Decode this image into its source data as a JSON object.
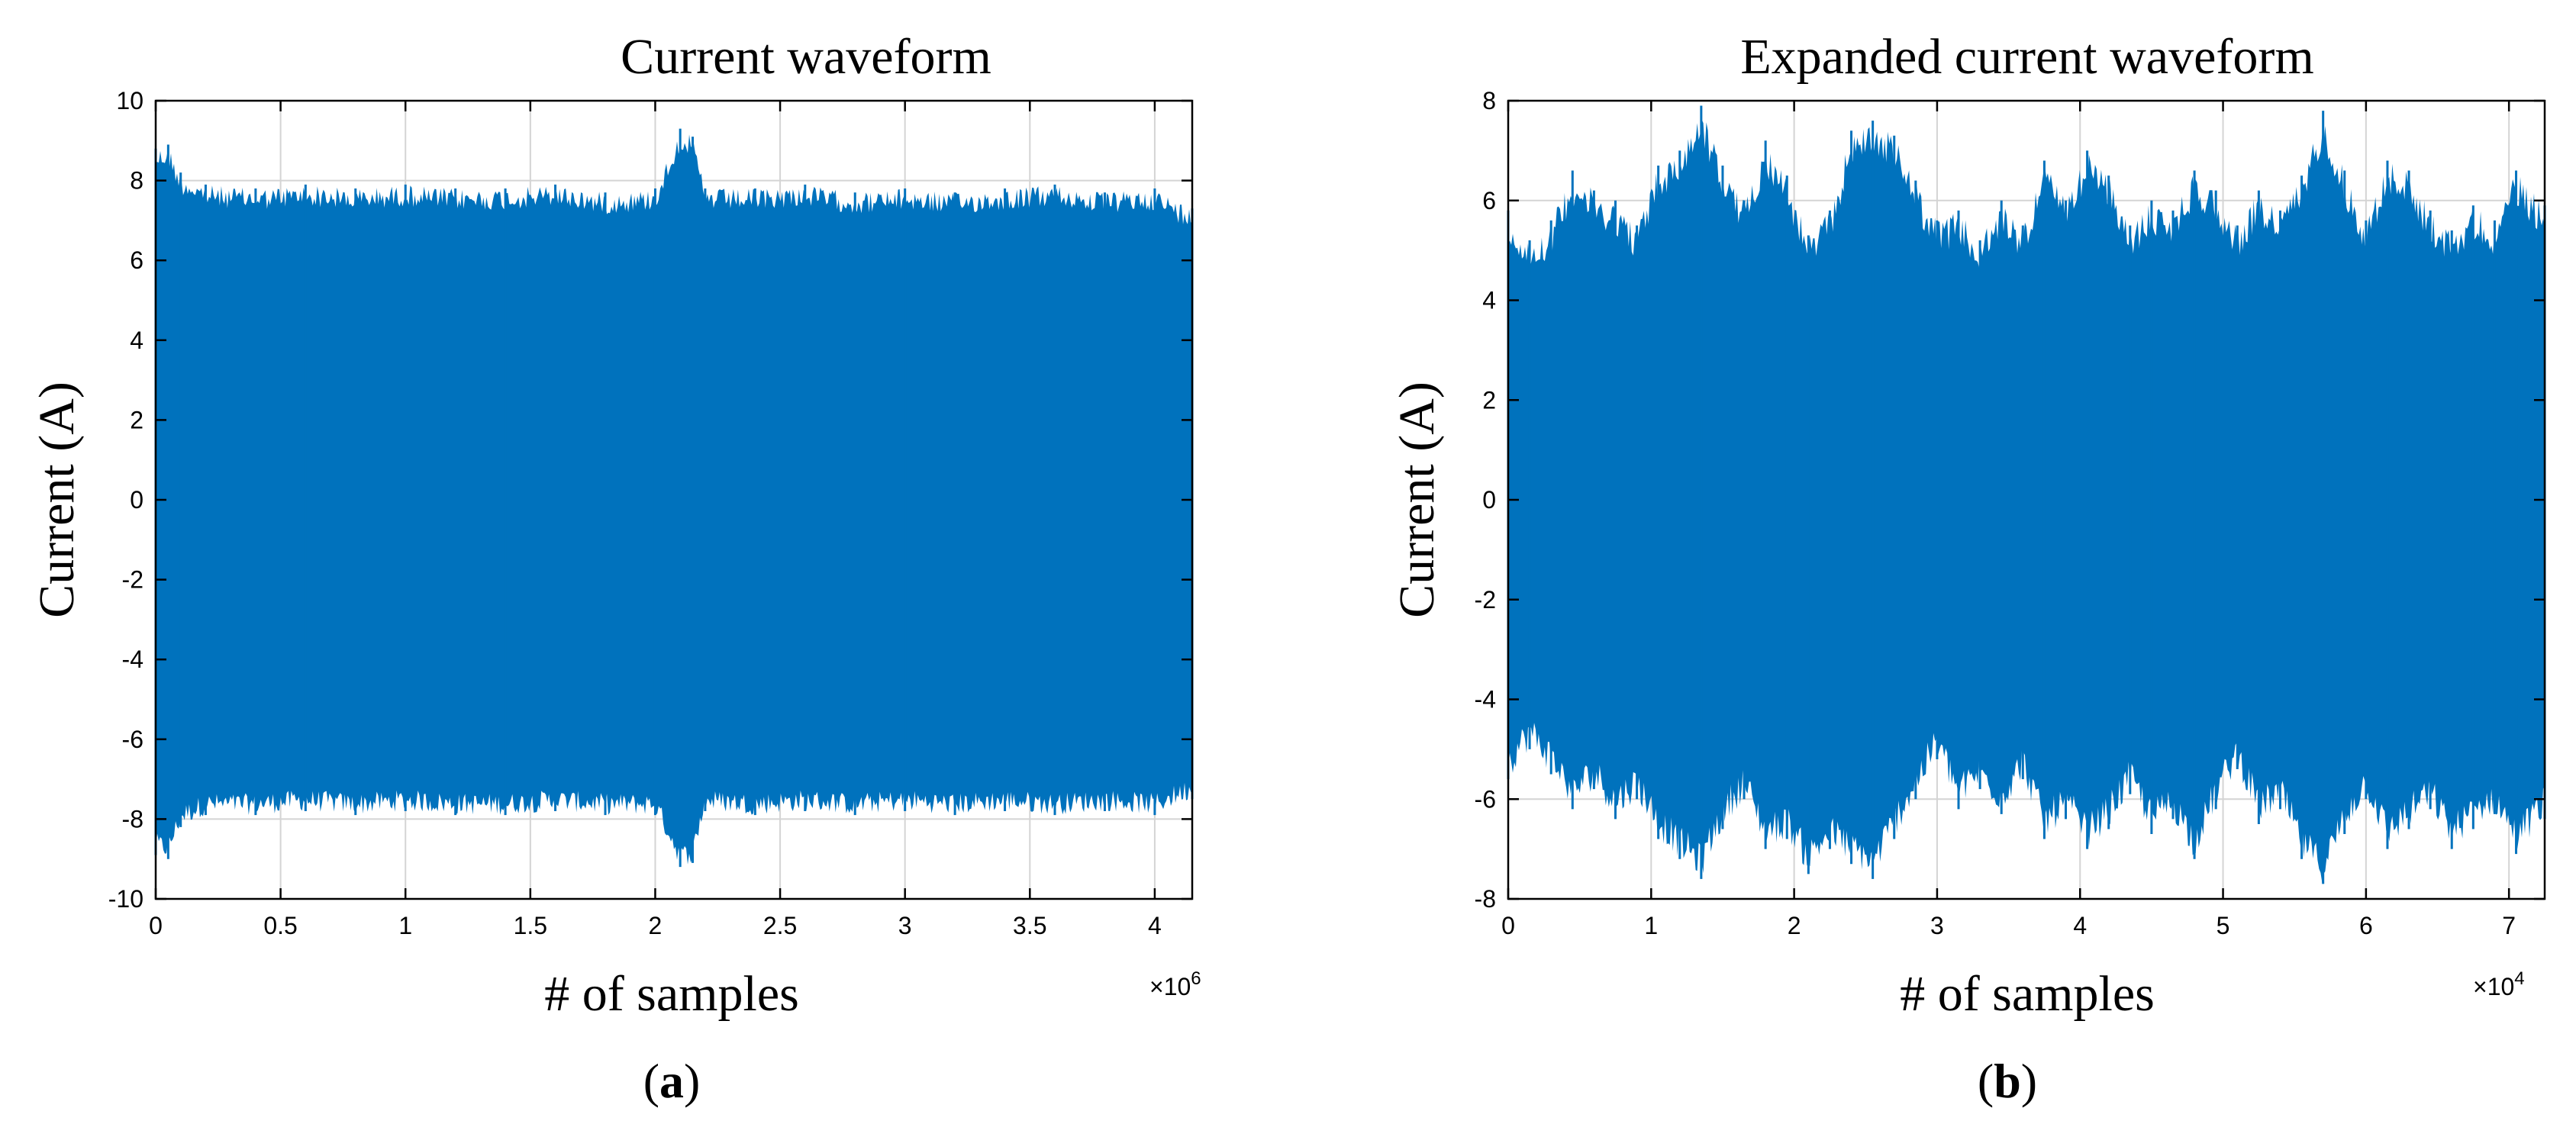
{
  "chart_data": [
    {
      "type": "line",
      "title": "Current waveform",
      "xlabel": "# of samples",
      "ylabel": "Current (A)",
      "xlim": [
        0,
        4150000
      ],
      "ylim": [
        -10,
        10
      ],
      "xticks": [
        0,
        500000,
        1000000,
        1500000,
        2000000,
        2500000,
        3000000,
        3500000,
        4000000
      ],
      "xtick_labels": [
        "0",
        "0.5",
        "1",
        "1.5",
        "2",
        "2.5",
        "3",
        "3.5",
        "4"
      ],
      "yticks": [
        -10,
        -8,
        -6,
        -4,
        -2,
        0,
        2,
        4,
        6,
        8,
        10
      ],
      "ytick_labels": [
        "-10",
        "-8",
        "-6",
        "-4",
        "-2",
        "0",
        "2",
        "4",
        "6",
        "8",
        "10"
      ],
      "x_exponent": "×10",
      "x_exponent_power": "6",
      "grid": true,
      "caption_open": "(",
      "caption_letter": "a",
      "caption_close": ")",
      "color": "#0072BD",
      "envelope": {
        "x": [
          0,
          50000,
          100000,
          200000,
          400000,
          600000,
          800000,
          1000000,
          1200000,
          1400000,
          1600000,
          1800000,
          2000000,
          2100000,
          2150000,
          2200000,
          2400000,
          2600000,
          2800000,
          3000000,
          3200000,
          3400000,
          3600000,
          3800000,
          4000000,
          4150000
        ],
        "upper": [
          8.8,
          8.9,
          8.2,
          7.9,
          7.8,
          7.9,
          7.8,
          7.9,
          7.8,
          7.8,
          7.9,
          7.7,
          7.8,
          9.3,
          9.1,
          7.8,
          7.8,
          7.9,
          7.7,
          7.8,
          7.7,
          7.8,
          7.9,
          7.7,
          7.8,
          7.3
        ],
        "lower": [
          -8.9,
          -9.0,
          -8.2,
          -7.9,
          -7.9,
          -7.8,
          -7.9,
          -7.8,
          -7.9,
          -7.9,
          -7.8,
          -7.9,
          -7.9,
          -9.2,
          -9.1,
          -7.8,
          -7.9,
          -7.8,
          -7.9,
          -7.8,
          -7.9,
          -7.8,
          -7.9,
          -7.8,
          -7.9,
          -7.5
        ]
      }
    },
    {
      "type": "line",
      "title": "Expanded current waveform",
      "xlabel": "# of samples",
      "ylabel": "Current (A)",
      "xlim": [
        0,
        72500
      ],
      "ylim": [
        -8,
        8
      ],
      "xticks": [
        0,
        10000,
        20000,
        30000,
        40000,
        50000,
        60000,
        70000
      ],
      "xtick_labels": [
        "0",
        "1",
        "2",
        "3",
        "4",
        "5",
        "6",
        "7"
      ],
      "yticks": [
        -8,
        -6,
        -4,
        -2,
        0,
        2,
        4,
        6,
        8
      ],
      "ytick_labels": [
        "-8",
        "-6",
        "-4",
        "-2",
        "0",
        "2",
        "4",
        "6",
        "8"
      ],
      "x_exponent": "×10",
      "x_exponent_power": "4",
      "grid": true,
      "caption_open": "(",
      "caption_letter": "b",
      "caption_close": ")",
      "color": "#0072BD",
      "envelope": {
        "x": [
          0,
          1500,
          3000,
          4500,
          6000,
          7500,
          9000,
          10500,
          12000,
          13500,
          15000,
          16500,
          18000,
          19500,
          21000,
          22500,
          24000,
          25500,
          27000,
          28500,
          30000,
          31500,
          33000,
          34500,
          36000,
          37500,
          39000,
          40500,
          42000,
          43500,
          45000,
          46500,
          48000,
          49500,
          51000,
          52500,
          54000,
          55500,
          57000,
          58500,
          60000,
          61500,
          63000,
          64500,
          66000,
          67500,
          69000,
          70500,
          72500
        ],
        "upper": [
          5.8,
          5.2,
          5.6,
          6.6,
          6.2,
          6.0,
          5.5,
          6.7,
          7.0,
          7.9,
          6.7,
          6.0,
          7.2,
          6.5,
          5.3,
          5.8,
          7.4,
          7.6,
          7.3,
          6.4,
          5.6,
          5.8,
          5.2,
          6.0,
          5.5,
          6.8,
          6.0,
          7.0,
          6.5,
          5.5,
          6.0,
          5.8,
          6.6,
          6.2,
          5.5,
          6.2,
          5.8,
          6.5,
          7.8,
          6.6,
          5.6,
          6.8,
          6.6,
          5.8,
          5.4,
          5.9,
          5.6,
          6.6,
          5.9
        ],
        "lower": [
          -5.6,
          -5.0,
          -5.5,
          -6.2,
          -5.8,
          -6.4,
          -6.0,
          -6.8,
          -7.2,
          -7.6,
          -6.6,
          -6.0,
          -7.0,
          -6.8,
          -7.5,
          -7.0,
          -7.3,
          -7.6,
          -6.8,
          -6.0,
          -5.2,
          -6.2,
          -5.8,
          -6.3,
          -5.6,
          -6.8,
          -6.4,
          -7.0,
          -6.6,
          -5.9,
          -6.7,
          -6.4,
          -7.2,
          -6.2,
          -5.4,
          -6.5,
          -6.2,
          -7.2,
          -7.7,
          -6.7,
          -6.0,
          -7.0,
          -6.6,
          -6.2,
          -7.0,
          -6.6,
          -6.3,
          -7.1,
          -6.4
        ]
      }
    }
  ]
}
